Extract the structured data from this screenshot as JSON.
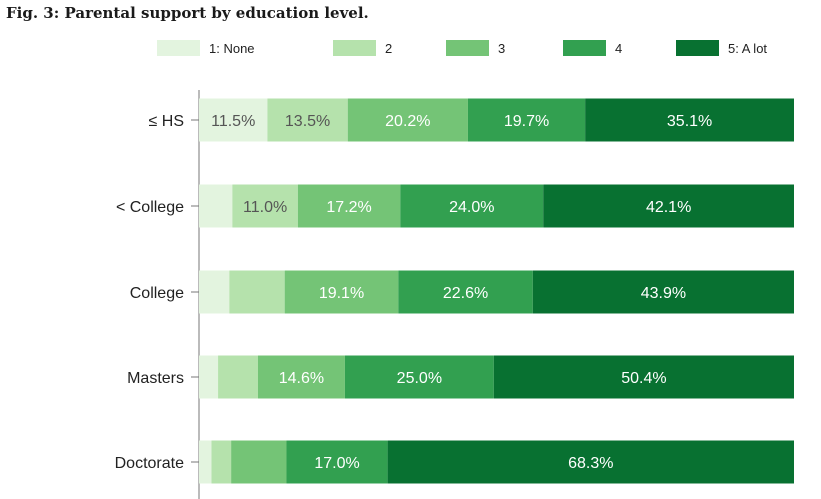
{
  "figure": {
    "title": "Fig. 3: Parental support by education level."
  },
  "chart_data": {
    "type": "bar",
    "orientation": "horizontal",
    "stacked": true,
    "normalized": true,
    "title": "Fig. 3: Parental support by education level.",
    "xlabel": "",
    "ylabel": "",
    "xlim": [
      0,
      100
    ],
    "grid": false,
    "legend_position": "top",
    "categories": [
      "≤ HS",
      "< College",
      "College",
      "Masters",
      "Doctorate"
    ],
    "series": [
      {
        "name": "1: None",
        "color": "#e3f4df",
        "values": [
          11.5,
          5.6,
          5.1,
          3.2,
          2.1
        ],
        "labels": [
          "11.5%",
          "",
          "",
          "",
          ""
        ],
        "label_color": "#555555"
      },
      {
        "name": "2",
        "color": "#b5e2ac",
        "values": [
          13.5,
          11.0,
          9.3,
          6.7,
          3.3
        ],
        "labels": [
          "13.5%",
          "11.0%",
          "",
          "",
          ""
        ],
        "label_color": "#555555"
      },
      {
        "name": "3",
        "color": "#74c476",
        "values": [
          20.2,
          17.2,
          19.1,
          14.6,
          9.3
        ],
        "labels": [
          "20.2%",
          "17.2%",
          "19.1%",
          "14.6%",
          ""
        ],
        "label_color": "#ffffff"
      },
      {
        "name": "4",
        "color": "#32a050",
        "values": [
          19.7,
          24.0,
          22.6,
          25.0,
          17.0
        ],
        "labels": [
          "19.7%",
          "24.0%",
          "22.6%",
          "25.0%",
          "17.0%"
        ],
        "label_color": "#ffffff"
      },
      {
        "name": "5: A lot",
        "color": "#087131",
        "values": [
          35.1,
          42.1,
          43.9,
          50.4,
          68.3
        ],
        "labels": [
          "35.1%",
          "42.1%",
          "43.9%",
          "50.4%",
          "68.3%"
        ],
        "label_color": "#ffffff"
      }
    ]
  }
}
